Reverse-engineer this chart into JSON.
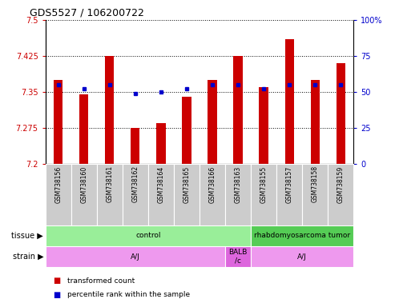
{
  "title": "GDS5527 / 106200722",
  "samples": [
    "GSM738156",
    "GSM738160",
    "GSM738161",
    "GSM738162",
    "GSM738164",
    "GSM738165",
    "GSM738166",
    "GSM738163",
    "GSM738155",
    "GSM738157",
    "GSM738158",
    "GSM738159"
  ],
  "transformed_count": [
    7.375,
    7.345,
    7.425,
    7.275,
    7.285,
    7.34,
    7.375,
    7.425,
    7.36,
    7.46,
    7.375,
    7.41
  ],
  "percentile_rank": [
    55,
    52,
    55,
    49,
    50,
    52,
    55,
    55,
    52,
    55,
    55,
    55
  ],
  "y_min": 7.2,
  "y_max": 7.5,
  "y_ticks": [
    7.2,
    7.275,
    7.35,
    7.425,
    7.5
  ],
  "y2_ticks": [
    0,
    25,
    50,
    75,
    100
  ],
  "bar_color": "#cc0000",
  "dot_color": "#0000cc",
  "tissue_labels": [
    {
      "text": "control",
      "start": 0,
      "end": 8,
      "color": "#99ee99"
    },
    {
      "text": "rhabdomyosarcoma tumor",
      "start": 8,
      "end": 12,
      "color": "#55cc55"
    }
  ],
  "strain_labels": [
    {
      "text": "A/J",
      "start": 0,
      "end": 7,
      "color": "#ee99ee"
    },
    {
      "text": "BALB\n/c",
      "start": 7,
      "end": 8,
      "color": "#dd66dd"
    },
    {
      "text": "A/J",
      "start": 8,
      "end": 12,
      "color": "#ee99ee"
    }
  ],
  "tissue_row_label": "tissue",
  "strain_row_label": "strain",
  "legend_items": [
    {
      "color": "#cc0000",
      "label": "transformed count"
    },
    {
      "color": "#0000cc",
      "label": "percentile rank within the sample"
    }
  ],
  "sample_bg_color": "#cccccc",
  "bg_color": "#ffffff",
  "plot_bg": "#ffffff",
  "tick_label_color_left": "#cc0000",
  "tick_label_color_right": "#0000cc",
  "bar_width": 0.35
}
